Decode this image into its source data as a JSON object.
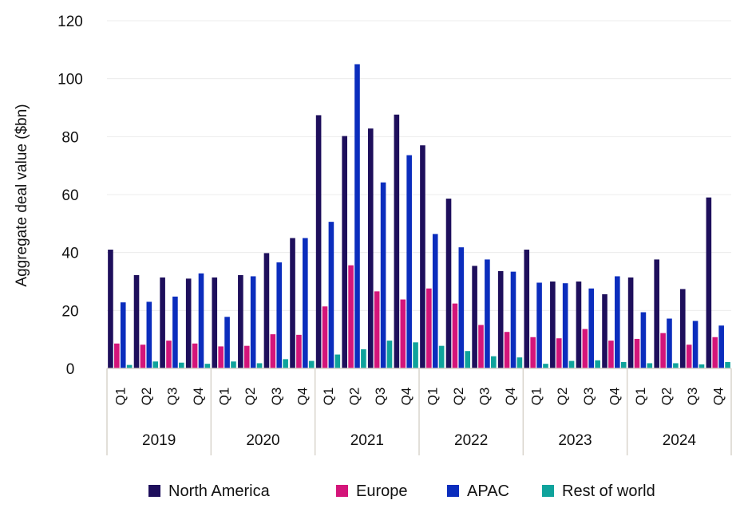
{
  "chart_data": {
    "type": "bar",
    "title": "",
    "ylabel": "Aggregate deal value ($bn)",
    "xlabel": "",
    "ylim": [
      0,
      120
    ],
    "yticks": [
      "0",
      "20",
      "40",
      "60",
      "80",
      "100",
      "120"
    ],
    "grid": true,
    "legend_position": "bottom",
    "years": [
      "2019",
      "2020",
      "2021",
      "2022",
      "2023",
      "2024"
    ],
    "quarters": [
      "Q1",
      "Q2",
      "Q3",
      "Q4"
    ],
    "categories": [
      "2019 Q1",
      "2019 Q2",
      "2019 Q3",
      "2019 Q4",
      "2020 Q1",
      "2020 Q2",
      "2020 Q3",
      "2020 Q4",
      "2021 Q1",
      "2021 Q2",
      "2021 Q3",
      "2021 Q4",
      "2022 Q1",
      "2022 Q2",
      "2022 Q3",
      "2022 Q4",
      "2023 Q1",
      "2023 Q2",
      "2023 Q3",
      "2023 Q4",
      "2024 Q1",
      "2024 Q2",
      "2024 Q3",
      "2024 Q4"
    ],
    "series": [
      {
        "name": "North America",
        "color": "#1e0f5c",
        "values": [
          41,
          32.2,
          31.4,
          31,
          31.4,
          32.2,
          39.8,
          45,
          87.4,
          80.2,
          82.8,
          87.6,
          77,
          58.6,
          35.4,
          33.6,
          41,
          30,
          30,
          25.6,
          31.4,
          37.6,
          27.4,
          59
        ]
      },
      {
        "name": "Europe",
        "color": "#d4157a",
        "values": [
          8.6,
          8.2,
          9.6,
          8.6,
          7.6,
          7.8,
          11.8,
          11.6,
          21.4,
          35.6,
          26.6,
          23.8,
          27.6,
          22.4,
          15,
          12.6,
          10.8,
          10.4,
          13.6,
          9.6,
          10.2,
          12.2,
          8.2,
          10.8
        ]
      },
      {
        "name": "APAC",
        "color": "#0b2dbd",
        "values": [
          22.8,
          23,
          24.8,
          32.8,
          17.8,
          31.8,
          36.6,
          45,
          50.6,
          105,
          64.2,
          73.6,
          46.4,
          41.8,
          37.6,
          33.4,
          29.6,
          29.4,
          27.6,
          31.8,
          19.4,
          17.2,
          16.4,
          14.8
        ]
      },
      {
        "name": "Rest of world",
        "color": "#0fa39c",
        "values": [
          1.2,
          2.4,
          2,
          1.6,
          2.4,
          1.8,
          3.2,
          2.6,
          4.8,
          6.6,
          9.6,
          9,
          7.8,
          6,
          4.2,
          3.8,
          1.6,
          2.6,
          2.8,
          2.2,
          1.8,
          1.8,
          1.4,
          2.2
        ]
      }
    ]
  }
}
